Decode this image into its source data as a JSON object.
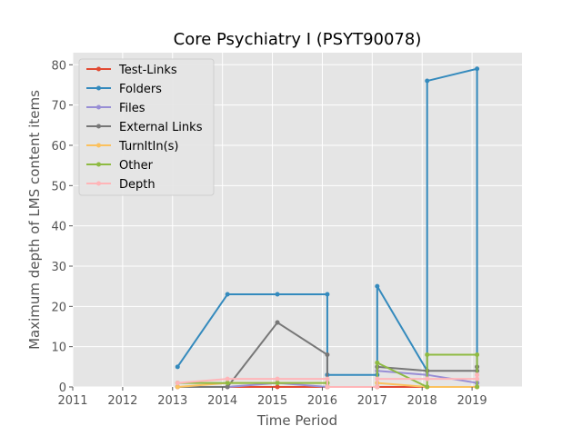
{
  "chart_data": {
    "type": "line",
    "title": "Core Psychiatry I (PSYT90078)",
    "xlabel": "Time Period",
    "ylabel": "Maximum depth of LMS content items",
    "xlim": [
      2011,
      2020
    ],
    "ylim": [
      0,
      83
    ],
    "x_ticks": [
      "2011",
      "2012",
      "2013",
      "2014",
      "2015",
      "2016",
      "2017",
      "2018",
      "2019"
    ],
    "y_ticks": [
      "0",
      "10",
      "20",
      "30",
      "40",
      "50",
      "60",
      "70",
      "80"
    ],
    "grid": true,
    "legend_position": "top-left",
    "series": [
      {
        "name": "Test-Links",
        "color": "#E24A33",
        "points": [
          [
            2013.1,
            0
          ],
          [
            2014.1,
            0
          ],
          [
            2015.1,
            0
          ],
          [
            2016.1,
            0
          ],
          [
            2016.1,
            0
          ],
          [
            2017.1,
            0
          ],
          [
            2017.1,
            0
          ],
          [
            2018.1,
            0
          ],
          [
            2018.1,
            0
          ],
          [
            2019.1,
            0
          ],
          [
            2019.1,
            0
          ]
        ]
      },
      {
        "name": "Folders",
        "color": "#348ABD",
        "points": [
          [
            2013.1,
            5
          ],
          [
            2014.1,
            23
          ],
          [
            2015.1,
            23
          ],
          [
            2016.1,
            23
          ],
          [
            2016.1,
            3
          ],
          [
            2017.1,
            3
          ],
          [
            2017.1,
            25
          ],
          [
            2018.1,
            4
          ],
          [
            2018.1,
            76
          ],
          [
            2019.1,
            79
          ],
          [
            2019.1,
            1
          ]
        ]
      },
      {
        "name": "Files",
        "color": "#988ED5",
        "points": [
          [
            2013.1,
            0
          ],
          [
            2014.1,
            0
          ],
          [
            2015.1,
            1
          ],
          [
            2016.1,
            0
          ],
          [
            2016.1,
            0
          ],
          [
            2017.1,
            0
          ],
          [
            2017.1,
            4
          ],
          [
            2018.1,
            3
          ],
          [
            2018.1,
            3
          ],
          [
            2019.1,
            1
          ],
          [
            2019.1,
            1
          ]
        ]
      },
      {
        "name": "External Links",
        "color": "#777777",
        "points": [
          [
            2013.1,
            0
          ],
          [
            2014.1,
            0
          ],
          [
            2015.1,
            16
          ],
          [
            2016.1,
            8
          ],
          [
            2016.1,
            0
          ],
          [
            2017.1,
            0
          ],
          [
            2017.1,
            5
          ],
          [
            2018.1,
            4
          ],
          [
            2018.1,
            4
          ],
          [
            2019.1,
            4
          ],
          [
            2019.1,
            5
          ]
        ]
      },
      {
        "name": "TurnItIn(s)",
        "color": "#FBC15E",
        "points": [
          [
            2013.1,
            0
          ],
          [
            2014.1,
            1
          ],
          [
            2015.1,
            1
          ],
          [
            2016.1,
            1
          ],
          [
            2016.1,
            0
          ],
          [
            2017.1,
            0
          ],
          [
            2017.1,
            1
          ],
          [
            2018.1,
            0
          ],
          [
            2018.1,
            0
          ],
          [
            2019.1,
            0
          ],
          [
            2019.1,
            0
          ]
        ]
      },
      {
        "name": "Other",
        "color": "#8EBA42",
        "points": [
          [
            2013.1,
            1
          ],
          [
            2014.1,
            1
          ],
          [
            2015.1,
            1
          ],
          [
            2016.1,
            1
          ],
          [
            2016.1,
            0
          ],
          [
            2017.1,
            0
          ],
          [
            2017.1,
            6
          ],
          [
            2018.1,
            0
          ],
          [
            2018.1,
            8
          ],
          [
            2019.1,
            8
          ],
          [
            2019.1,
            0
          ]
        ]
      },
      {
        "name": "Depth",
        "color": "#FFB5B8",
        "points": [
          [
            2013.1,
            1
          ],
          [
            2014.1,
            2
          ],
          [
            2015.1,
            2
          ],
          [
            2016.1,
            2
          ],
          [
            2016.1,
            0
          ],
          [
            2017.1,
            0
          ],
          [
            2017.1,
            2
          ],
          [
            2018.1,
            2
          ],
          [
            2018.1,
            2
          ],
          [
            2019.1,
            2
          ],
          [
            2019.1,
            3
          ]
        ]
      }
    ]
  }
}
